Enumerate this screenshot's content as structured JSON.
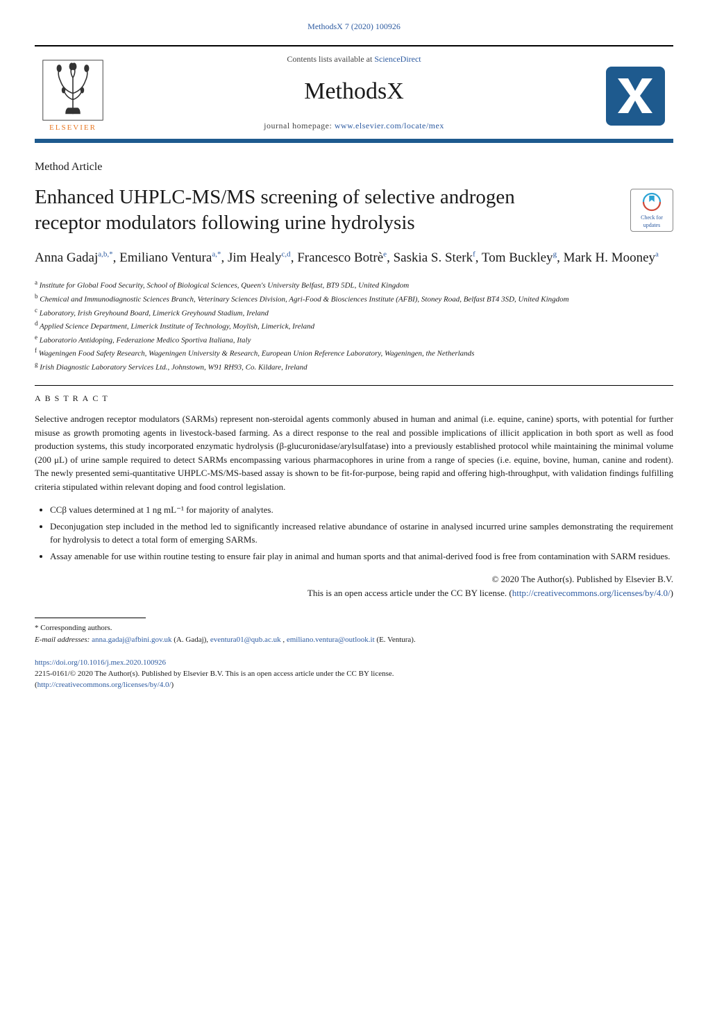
{
  "journal_ref": "MethodsX 7 (2020) 100926",
  "header": {
    "publisher": "ELSEVIER",
    "contents_line_prefix": "Contents lists available at ",
    "contents_link_text": "ScienceDirect",
    "journal_name": "MethodsX",
    "homepage_prefix": "journal homepage: ",
    "homepage_url": "www.elsevier.com/locate/mex",
    "logo_letters": "X",
    "logo_bg": "#1e5a8e",
    "logo_fg": "#ffffff"
  },
  "article_type": "Method Article",
  "title": "Enhanced UHPLC-MS/MS screening of selective androgen receptor modulators following urine hydrolysis",
  "updates_badge": {
    "line1": "Check for",
    "line2": "updates",
    "mark_color": "#2ba3d4",
    "ring_color": "#d04a3a"
  },
  "authors_html": "Anna Gadaj<sup>a,b,*</sup>, Emiliano Ventura<sup>a,*</sup>, Jim Healy<sup>c,d</sup>, Francesco Botrè<sup>e</sup>, Saskia S. Sterk<sup>f</sup>, Tom Buckley<sup>g</sup>, Mark H. Mooney<sup>a</sup>",
  "affiliations": [
    {
      "sup": "a",
      "text": "Institute for Global Food Security, School of Biological Sciences, Queen's University Belfast, BT9 5DL, United Kingdom"
    },
    {
      "sup": "b",
      "text": "Chemical and Immunodiagnostic Sciences Branch, Veterinary Sciences Division, Agri-Food & Biosciences Institute (AFBI), Stoney Road, Belfast BT4 3SD, United Kingdom"
    },
    {
      "sup": "c",
      "text": "Laboratory, Irish Greyhound Board, Limerick Greyhound Stadium, Ireland"
    },
    {
      "sup": "d",
      "text": "Applied Science Department, Limerick Institute of Technology, Moylish, Limerick, Ireland"
    },
    {
      "sup": "e",
      "text": "Laboratorio Antidoping, Federazione Medico Sportiva Italiana, Italy"
    },
    {
      "sup": "f",
      "text": "Wageningen Food Safety Research, Wageningen University & Research, European Union Reference Laboratory, Wageningen, the Netherlands"
    },
    {
      "sup": "g",
      "text": "Irish Diagnostic Laboratory Services Ltd., Johnstown, W91 RH93, Co. Kildare, Ireland"
    }
  ],
  "abstract_heading": "ABSTRACT",
  "abstract_paragraph": "Selective androgen receptor modulators (SARMs) represent non-steroidal agents commonly abused in human and animal (i.e. equine, canine) sports, with potential for further misuse as growth promoting agents in livestock-based farming. As a direct response to the real and possible implications of illicit application in both sport as well as food production systems, this study incorporated enzymatic hydrolysis (β-glucuronidase/arylsulfatase) into a previously established protocol while maintaining the minimal volume (200 μL) of urine sample required to detect SARMs encompassing various pharmacophores in urine from a range of species (i.e. equine, bovine, human, canine and rodent). The newly presented semi-quantitative UHPLC-MS/MS-based assay is shown to be fit-for-purpose, being rapid and offering high-throughput, with validation findings fulfilling criteria stipulated within relevant doping and food control legislation.",
  "bullets": [
    "CCβ values determined at 1 ng mL⁻¹ for majority of analytes.",
    "Deconjugation step included in the method led to significantly increased relative abundance of ostarine in analysed incurred urine samples demonstrating the requirement for hydrolysis to detect a total form of emerging SARMs.",
    "Assay amenable for use within routine testing to ensure fair play in animal and human sports and that animal-derived food is free from contamination with SARM residues."
  ],
  "copyright": {
    "line1": "© 2020 The Author(s). Published by Elsevier B.V.",
    "line2_prefix": "This is an open access article under the CC BY license. (",
    "license_url": "http://creativecommons.org/licenses/by/4.0/",
    "line2_suffix": ")"
  },
  "footnotes": {
    "corr_label": "* Corresponding authors.",
    "email_label": "E-mail addresses:",
    "emails": [
      {
        "addr": "anna.gadaj@afbini.gov.uk",
        "who": "(A. Gadaj),"
      },
      {
        "addr": "eventura01@qub.ac.uk",
        "who": ","
      },
      {
        "addr": "emiliano.ventura@outlook.it",
        "who": "(E. Ventura)."
      }
    ]
  },
  "footer": {
    "doi": "https://doi.org/10.1016/j.mex.2020.100926",
    "issn_line": "2215-0161/© 2020 The Author(s). Published by Elsevier B.V. This is an open access article under the CC BY license.",
    "license_paren_prefix": "(",
    "license_url": "http://creativecommons.org/licenses/by/4.0/",
    "license_paren_suffix": ")"
  },
  "colors": {
    "link": "#2c5aa0",
    "rule": "#000000",
    "bottom_bar": "#1e5a8e",
    "elsevier_orange": "#e87722",
    "text": "#1a1a1a",
    "background": "#ffffff"
  },
  "typography": {
    "body_pt": 13,
    "title_pt": 29,
    "authors_pt": 19,
    "journal_name_pt": 34,
    "affil_pt": 11,
    "footnote_pt": 11
  }
}
